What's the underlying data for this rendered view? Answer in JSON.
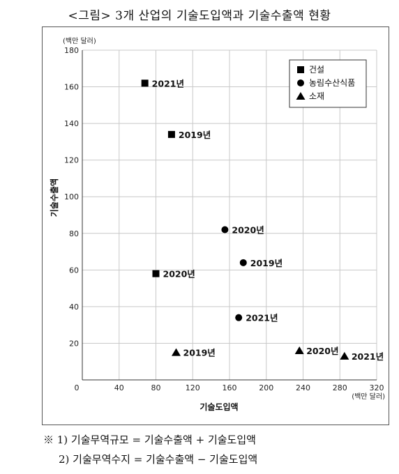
{
  "title": "<그림> 3개 산업의 기술도입액과 기술수출액 현황",
  "notes": [
    "※  1)  기술무역규모 = 기술수출액 + 기술도입액",
    "2)  기술무역수지 = 기술수출액 − 기술도입액"
  ],
  "chart_data": {
    "type": "scatter",
    "xlabel": "기술도입액",
    "ylabel": "기술수출액",
    "x_unit": "(백만 달러)",
    "y_unit": "(백만 달러)",
    "xlim": [
      0,
      320
    ],
    "ylim": [
      0,
      180
    ],
    "xticks": [
      0,
      40,
      80,
      120,
      160,
      200,
      240,
      280,
      320
    ],
    "yticks": [
      20,
      40,
      60,
      80,
      100,
      120,
      140,
      160,
      180
    ],
    "grid": true,
    "legend_position": "top-right",
    "series": [
      {
        "name": "건설",
        "marker": "square",
        "points": [
          {
            "x": 68,
            "y": 162,
            "label": "2021년"
          },
          {
            "x": 97,
            "y": 134,
            "label": "2019년"
          },
          {
            "x": 80,
            "y": 58,
            "label": "2020년"
          }
        ]
      },
      {
        "name": "농림수산식품",
        "marker": "circle",
        "points": [
          {
            "x": 155,
            "y": 82,
            "label": "2020년"
          },
          {
            "x": 175,
            "y": 64,
            "label": "2019년"
          },
          {
            "x": 170,
            "y": 34,
            "label": "2021년"
          }
        ]
      },
      {
        "name": "소재",
        "marker": "triangle",
        "points": [
          {
            "x": 102,
            "y": 15,
            "label": "2019년"
          },
          {
            "x": 236,
            "y": 16,
            "label": "2020년"
          },
          {
            "x": 285,
            "y": 13,
            "label": "2021년"
          }
        ]
      }
    ]
  }
}
